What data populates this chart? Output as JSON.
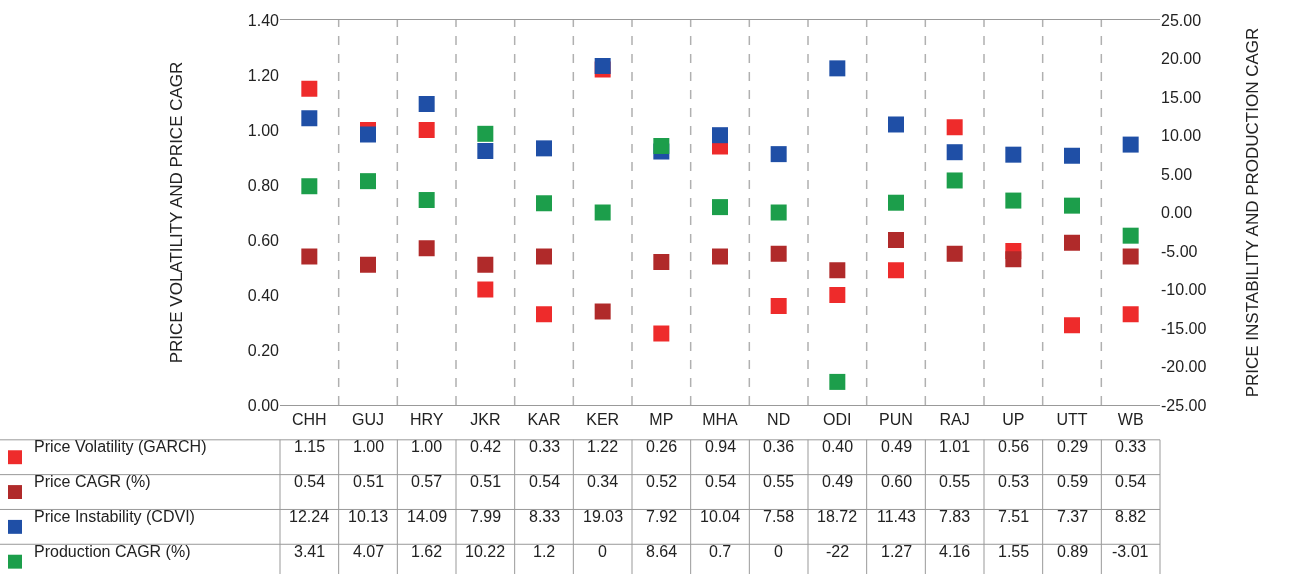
{
  "chart_data": {
    "type": "scatter",
    "ylabel": "PRICE VOLATILITY AND PRICE CAGR",
    "y2label": "PRICE INSTABILITY AND PRODUCTION CAGR",
    "categories": [
      "CHH",
      "GUJ",
      "HRY",
      "JKR",
      "KAR",
      "KER",
      "MP",
      "MHA",
      "ND",
      "ODI",
      "PUN",
      "RAJ",
      "UP",
      "UTT",
      "WB"
    ],
    "series": [
      {
        "name": "Price Volatility (GARCH)",
        "color": "#ee2b2b",
        "values": [
          1.15,
          1.0,
          1.0,
          0.42,
          0.33,
          1.22,
          0.26,
          0.94,
          0.36,
          0.4,
          0.49,
          1.01,
          0.56,
          0.29,
          0.33
        ],
        "value_labels": [
          "1.15",
          "1.00",
          "1.00",
          "0.42",
          "0.33",
          "1.22",
          "0.26",
          "0.94",
          "0.36",
          "0.40",
          "0.49",
          "1.01",
          "0.56",
          "0.29",
          "0.33"
        ]
      },
      {
        "name": "Price CAGR (%)",
        "color": "#b02a2a",
        "values": [
          0.54,
          0.51,
          0.57,
          0.51,
          0.54,
          0.34,
          0.52,
          0.54,
          0.55,
          0.49,
          0.6,
          0.55,
          0.53,
          0.59,
          0.54
        ],
        "value_labels": [
          "0.54",
          "0.51",
          "0.57",
          "0.51",
          "0.54",
          "0.34",
          "0.52",
          "0.54",
          "0.55",
          "0.49",
          "0.60",
          "0.55",
          "0.53",
          "0.59",
          "0.54"
        ]
      },
      {
        "name": "Price Instability (CDVI)",
        "color": "#1f4fa6",
        "axis": "y2",
        "values": [
          12.24,
          10.13,
          14.09,
          7.99,
          8.33,
          19.03,
          7.92,
          10.04,
          7.58,
          18.72,
          11.43,
          7.83,
          7.51,
          7.37,
          8.82
        ],
        "value_labels": [
          "12.24",
          "10.13",
          "14.09",
          "7.99",
          "8.33",
          "19.03",
          "7.92",
          "10.04",
          "7.58",
          "18.72",
          "11.43",
          "7.83",
          "7.51",
          "7.37",
          "8.82"
        ]
      },
      {
        "name": "Production CAGR (%)",
        "color": "#1c9e4b",
        "axis": "y2",
        "values": [
          3.41,
          4.07,
          1.62,
          10.22,
          1.2,
          0,
          8.64,
          0.7,
          0,
          -22,
          1.27,
          4.16,
          1.55,
          0.89,
          -3.01
        ],
        "value_labels": [
          "3.41",
          "4.07",
          "1.62",
          "10.22",
          "1.2",
          "0",
          "8.64",
          "0.7",
          "0",
          "-22",
          "1.27",
          "4.16",
          "1.55",
          "0.89",
          "-3.01"
        ]
      }
    ],
    "ylim": [
      0,
      1.4
    ],
    "yticks": [
      {
        "value": 0,
        "label": "0.00"
      },
      {
        "value": 0.2,
        "label": "0.20"
      },
      {
        "value": 0.4,
        "label": "0.40"
      },
      {
        "value": 0.6,
        "label": "0.60"
      },
      {
        "value": 0.8,
        "label": "0.80"
      },
      {
        "value": 1.0,
        "label": "1.00"
      },
      {
        "value": 1.2,
        "label": "1.20"
      },
      {
        "value": 1.4,
        "label": "1.40"
      }
    ],
    "y2lim": [
      -25,
      25
    ],
    "y2ticks": [
      {
        "value": -25,
        "label": "-25.00"
      },
      {
        "value": -20,
        "label": "-20.00"
      },
      {
        "value": -15,
        "label": "-15.00"
      },
      {
        "value": -10,
        "label": "-10.00"
      },
      {
        "value": -5,
        "label": "-5.00"
      },
      {
        "value": 0,
        "label": "0.00"
      },
      {
        "value": 5,
        "label": "5.00"
      },
      {
        "value": 10,
        "label": "10.00"
      },
      {
        "value": 15,
        "label": "15.00"
      },
      {
        "value": 20,
        "label": "20.00"
      },
      {
        "value": 25,
        "label": "25.00"
      }
    ],
    "grid": "x",
    "legend": "bottom",
    "marker": "square"
  }
}
